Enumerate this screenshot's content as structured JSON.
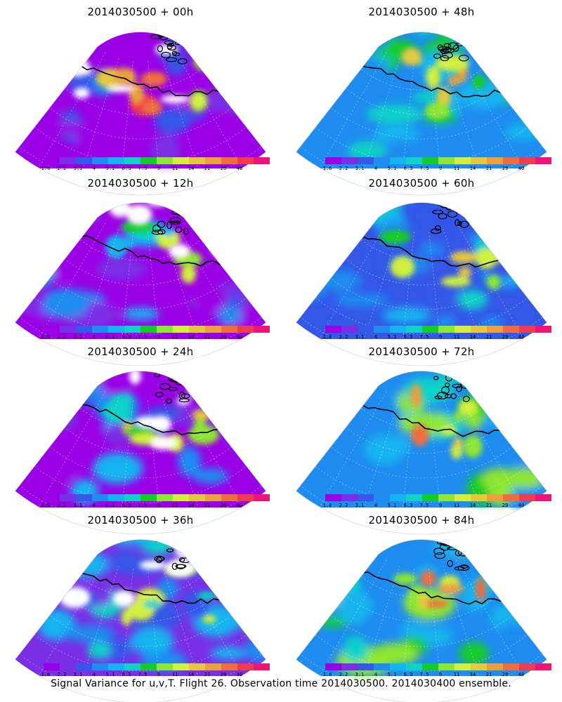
{
  "panels": [
    {
      "title": "2014030500 + 00h"
    },
    {
      "title": "2014030500 + 48h"
    },
    {
      "title": "2014030500 + 12h"
    },
    {
      "title": "2014030500 + 60h"
    },
    {
      "title": "2014030500 + 24h"
    },
    {
      "title": "2014030500 + 72h"
    },
    {
      "title": "2014030500 + 36h"
    },
    {
      "title": "2014030500 + 84h"
    }
  ],
  "colorbar": {
    "labels": [
      "1.6",
      "2.2",
      "3.1",
      "4",
      "5.1",
      "6.3",
      "7.5",
      "9",
      "11",
      "14",
      "21",
      "29",
      "40"
    ],
    "colors": [
      "#9a00e6",
      "#7a2ee6",
      "#3457e8",
      "#1e8cf0",
      "#14b4f0",
      "#0ed2c8",
      "#14cc28",
      "#8ce632",
      "#d2f03c",
      "#e6c83c",
      "#eba03c",
      "#f06e3c",
      "#f03c50",
      "#f01478"
    ]
  },
  "caption": "Signal Variance for u,v,T. Flight 26. Observation time 2014030500. 2014030400 ensemble."
}
